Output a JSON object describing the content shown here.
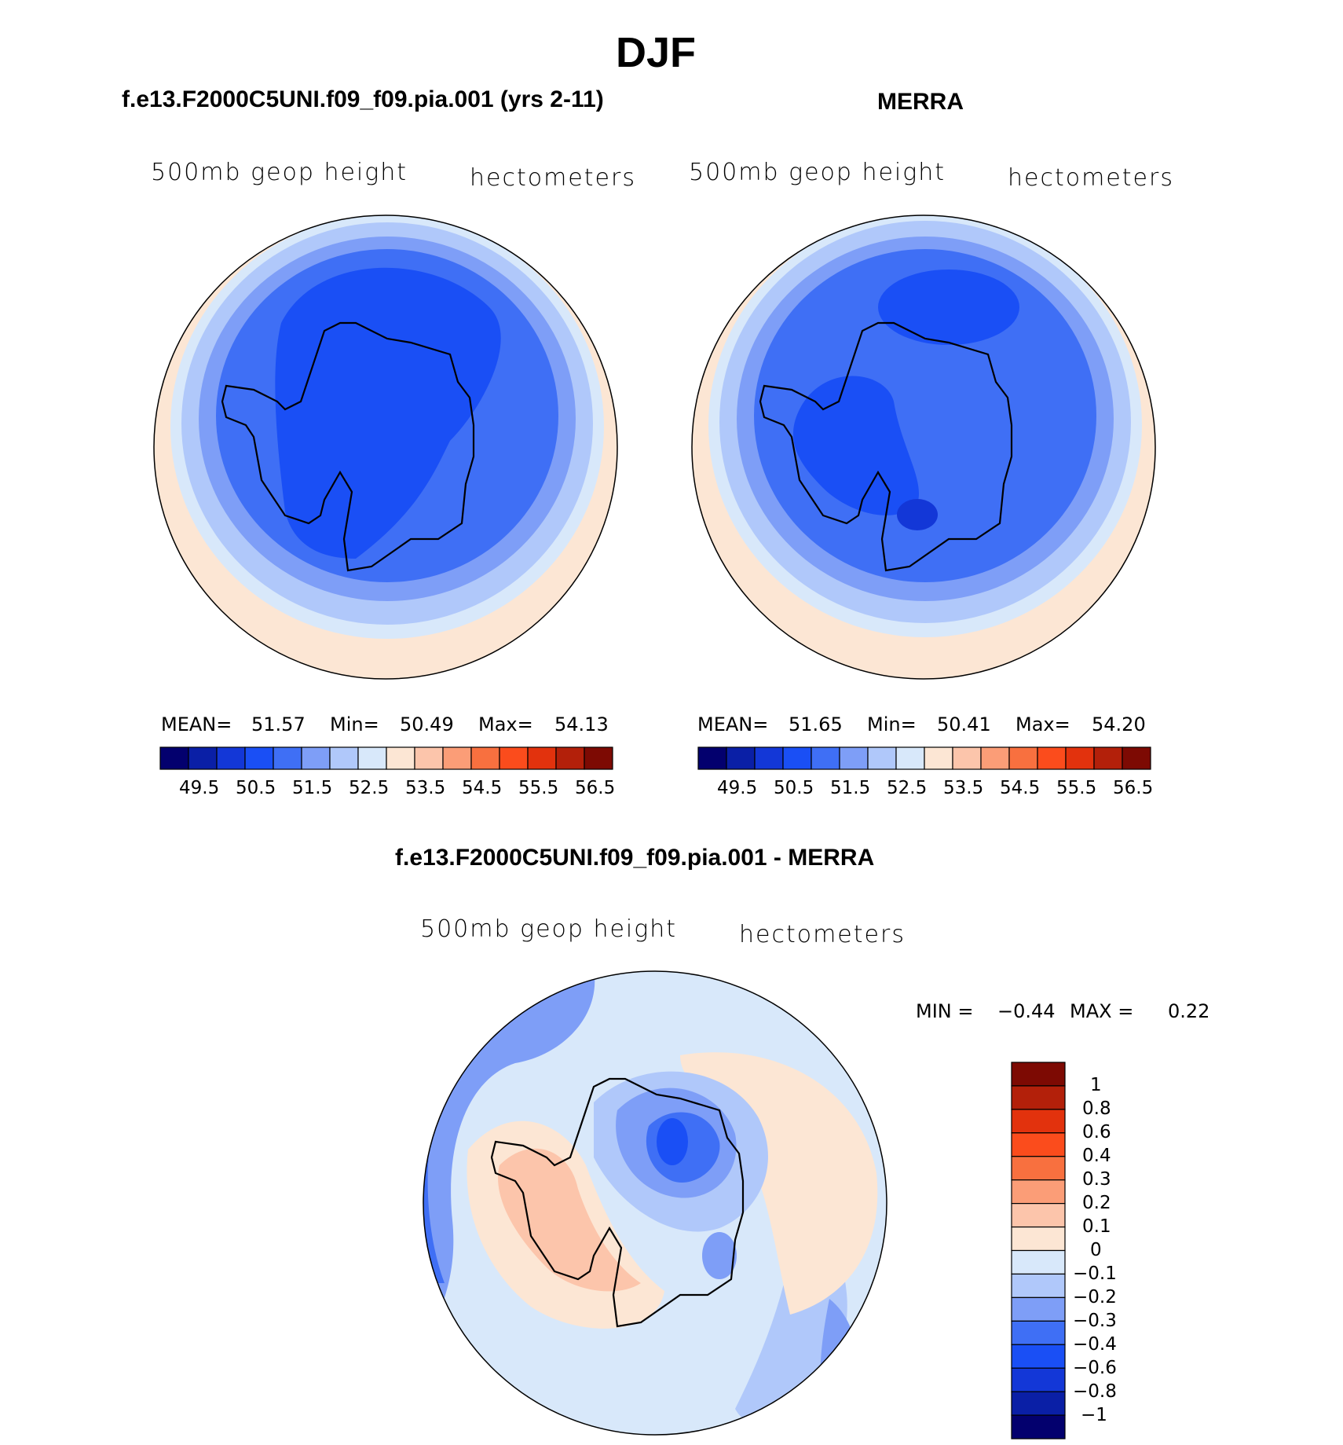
{
  "figure": {
    "title": "DJF",
    "panels": [
      {
        "id": "model",
        "title": "f.e13.F2000C5UNI.f09_f09.pia.001 (yrs 2-11)",
        "left_label": "500mb geop height",
        "right_label": "hectometers",
        "stats": {
          "mean_label": "MEAN=",
          "mean": "51.57",
          "min_label": "Min=",
          "min": "50.49",
          "max_label": "Max=",
          "max": "54.13"
        }
      },
      {
        "id": "merra",
        "title": "MERRA",
        "left_label": "500mb geop height",
        "right_label": "hectometers",
        "stats": {
          "mean_label": "MEAN=",
          "mean": "51.65",
          "min_label": "Min=",
          "min": "50.41",
          "max_label": "Max=",
          "max": "54.20"
        }
      },
      {
        "id": "difference",
        "title": "f.e13.F2000C5UNI.f09_f09.pia.001 - MERRA",
        "left_label": "500mb geop height",
        "right_label": "hectometers",
        "stats": {
          "min_label": "MIN =",
          "min": "−0.44",
          "max_label": "MAX =",
          "max": "0.22"
        }
      }
    ]
  },
  "colorbars": {
    "absolute": {
      "ticks": [
        "49.5",
        "50.5",
        "51.5",
        "52.5",
        "53.5",
        "54.5",
        "55.5",
        "56.5"
      ],
      "colors": [
        "#03006e",
        "#0a1fa6",
        "#1337d7",
        "#1a4ff5",
        "#3f6ff5",
        "#7e9ef7",
        "#b0c8fa",
        "#d8e8fa",
        "#fce6d4",
        "#fcc5ab",
        "#fb9d77",
        "#f8703f",
        "#fb4c1c",
        "#e2320d",
        "#b3200a",
        "#7d0a03"
      ]
    },
    "difference": {
      "ticks": [
        "1",
        "0.8",
        "0.6",
        "0.4",
        "0.3",
        "0.2",
        "0.1",
        "0",
        "−0.1",
        "−0.2",
        "−0.3",
        "−0.4",
        "−0.6",
        "−0.8",
        "−1"
      ],
      "colors": [
        "#7d0a03",
        "#b3200a",
        "#e2320d",
        "#fb4c1c",
        "#f8703f",
        "#fb9d77",
        "#fcc5ab",
        "#fce6d4",
        "#d8e8fa",
        "#b0c8fa",
        "#7e9ef7",
        "#3f6ff5",
        "#1a4ff5",
        "#1337d7",
        "#0a1fa6",
        "#03006e"
      ]
    }
  },
  "field_colors": {
    "deep": "#1a4ff5",
    "mid": "#3f6ff5",
    "light": "#7e9ef7",
    "pale": "#b0c8fa",
    "faint": "#d8e8fa",
    "warm1": "#fce6d4",
    "warm2": "#fcc5ab"
  }
}
